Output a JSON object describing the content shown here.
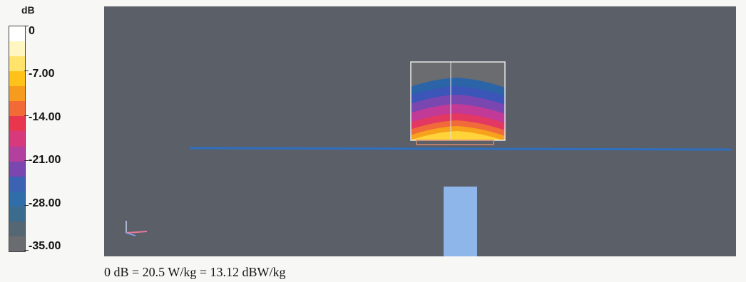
{
  "legend": {
    "unit": "dB",
    "ticks": [
      "0",
      "-7.00",
      "-14.00",
      "-21.00",
      "-28.00",
      "-35.00"
    ],
    "bands": [
      "#ffffff",
      "#fff6c2",
      "#ffe36a",
      "#ffc21a",
      "#f79b1e",
      "#f26a35",
      "#e8364e",
      "#d63a7c",
      "#b3409f",
      "#7a47b0",
      "#3c62b4",
      "#2f6ea8",
      "#3b6c8e",
      "#566774",
      "#6a6c70"
    ]
  },
  "scene": {
    "background": "#5a5f68",
    "contour_colors": [
      "#6a6c70",
      "#2c64a8",
      "#3b55b8",
      "#7a47b0",
      "#c13a98",
      "#e23862",
      "#f06a3a",
      "#f7a21c",
      "#ffd33a"
    ],
    "phantom_color": "#8fb6ea",
    "line_color": "#2f6fc0"
  },
  "caption": "0 dB = 20.5 W/kg = 13.12 dBW/kg"
}
